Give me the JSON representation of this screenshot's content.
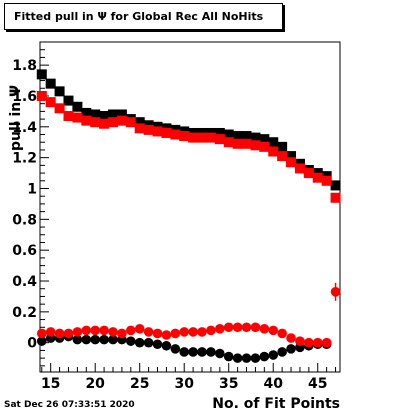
{
  "chart_data": {
    "type": "scatter",
    "title": "Fitted pull in Ψ for Global Rec All NoHits",
    "xlabel": "No. of Fit Points",
    "ylabel": "pull in Ψ",
    "xlim": [
      13.8,
      47.5
    ],
    "ylim": [
      -0.19,
      1.95
    ],
    "xticks": [
      "15",
      "20",
      "25",
      "30",
      "35",
      "40",
      "45"
    ],
    "xtick_values": [
      15,
      20,
      25,
      30,
      35,
      40,
      45
    ],
    "yticks": [
      "0",
      "0.2",
      "0.4",
      "0.6",
      "0.8",
      "1",
      "1.2",
      "1.4",
      "1.6",
      "1.8"
    ],
    "ytick_values": [
      0,
      0.2,
      0.4,
      0.6,
      0.8,
      1,
      1.2,
      1.4,
      1.6,
      1.8
    ],
    "grid": false,
    "series": [
      {
        "marker": "square",
        "color": "#000000",
        "x": [
          14,
          15,
          16,
          17,
          18,
          19,
          20,
          21,
          22,
          23,
          24,
          25,
          26,
          27,
          28,
          29,
          30,
          31,
          32,
          33,
          34,
          35,
          36,
          37,
          38,
          39,
          40,
          41,
          42,
          43,
          44,
          45,
          46,
          47
        ],
        "y": [
          1.74,
          1.68,
          1.63,
          1.57,
          1.53,
          1.49,
          1.48,
          1.47,
          1.48,
          1.48,
          1.45,
          1.43,
          1.41,
          1.4,
          1.39,
          1.38,
          1.37,
          1.36,
          1.36,
          1.36,
          1.36,
          1.35,
          1.34,
          1.34,
          1.33,
          1.32,
          1.3,
          1.27,
          1.21,
          1.16,
          1.12,
          1.1,
          1.08,
          1.02
        ]
      },
      {
        "marker": "square",
        "color": "#ff0000",
        "x": [
          14,
          15,
          16,
          17,
          18,
          19,
          20,
          21,
          22,
          23,
          24,
          25,
          26,
          27,
          28,
          29,
          30,
          31,
          32,
          33,
          34,
          35,
          36,
          37,
          38,
          39,
          40,
          41,
          42,
          43,
          44,
          45,
          46,
          47
        ],
        "y": [
          1.6,
          1.56,
          1.52,
          1.47,
          1.46,
          1.44,
          1.43,
          1.42,
          1.43,
          1.44,
          1.43,
          1.39,
          1.38,
          1.37,
          1.36,
          1.35,
          1.34,
          1.33,
          1.33,
          1.33,
          1.32,
          1.3,
          1.29,
          1.29,
          1.28,
          1.27,
          1.24,
          1.21,
          1.17,
          1.13,
          1.1,
          1.07,
          1.05,
          0.94
        ]
      },
      {
        "marker": "circle",
        "color": "#000000",
        "x": [
          14,
          15,
          16,
          17,
          18,
          19,
          20,
          21,
          22,
          23,
          24,
          25,
          26,
          27,
          28,
          29,
          30,
          31,
          32,
          33,
          34,
          35,
          36,
          37,
          38,
          39,
          40,
          41,
          42,
          43,
          44,
          45,
          46
        ],
        "y": [
          0.01,
          0.03,
          0.03,
          0.04,
          0.02,
          0.02,
          0.02,
          0.02,
          0.02,
          0.02,
          0.01,
          0.0,
          0.0,
          -0.01,
          -0.02,
          -0.04,
          -0.06,
          -0.06,
          -0.06,
          -0.06,
          -0.07,
          -0.09,
          -0.1,
          -0.1,
          -0.1,
          -0.09,
          -0.08,
          -0.06,
          -0.04,
          -0.03,
          -0.02,
          -0.01,
          -0.01
        ]
      },
      {
        "marker": "circle",
        "color": "#ff0000",
        "x": [
          14,
          15,
          16,
          17,
          18,
          19,
          20,
          21,
          22,
          23,
          24,
          25,
          26,
          27,
          28,
          29,
          30,
          31,
          32,
          33,
          34,
          35,
          36,
          37,
          38,
          39,
          40,
          41,
          42,
          43,
          44,
          45,
          46,
          47
        ],
        "y": [
          0.06,
          0.07,
          0.06,
          0.06,
          0.07,
          0.08,
          0.08,
          0.08,
          0.07,
          0.06,
          0.08,
          0.09,
          0.07,
          0.06,
          0.05,
          0.06,
          0.07,
          0.07,
          0.07,
          0.08,
          0.09,
          0.1,
          0.1,
          0.1,
          0.1,
          0.09,
          0.08,
          0.06,
          0.03,
          0.01,
          0.0,
          0.0,
          0.0,
          0.33
        ]
      }
    ]
  },
  "footer": {
    "datestamp": "Sat Dec 26 07:33:51 2020"
  }
}
